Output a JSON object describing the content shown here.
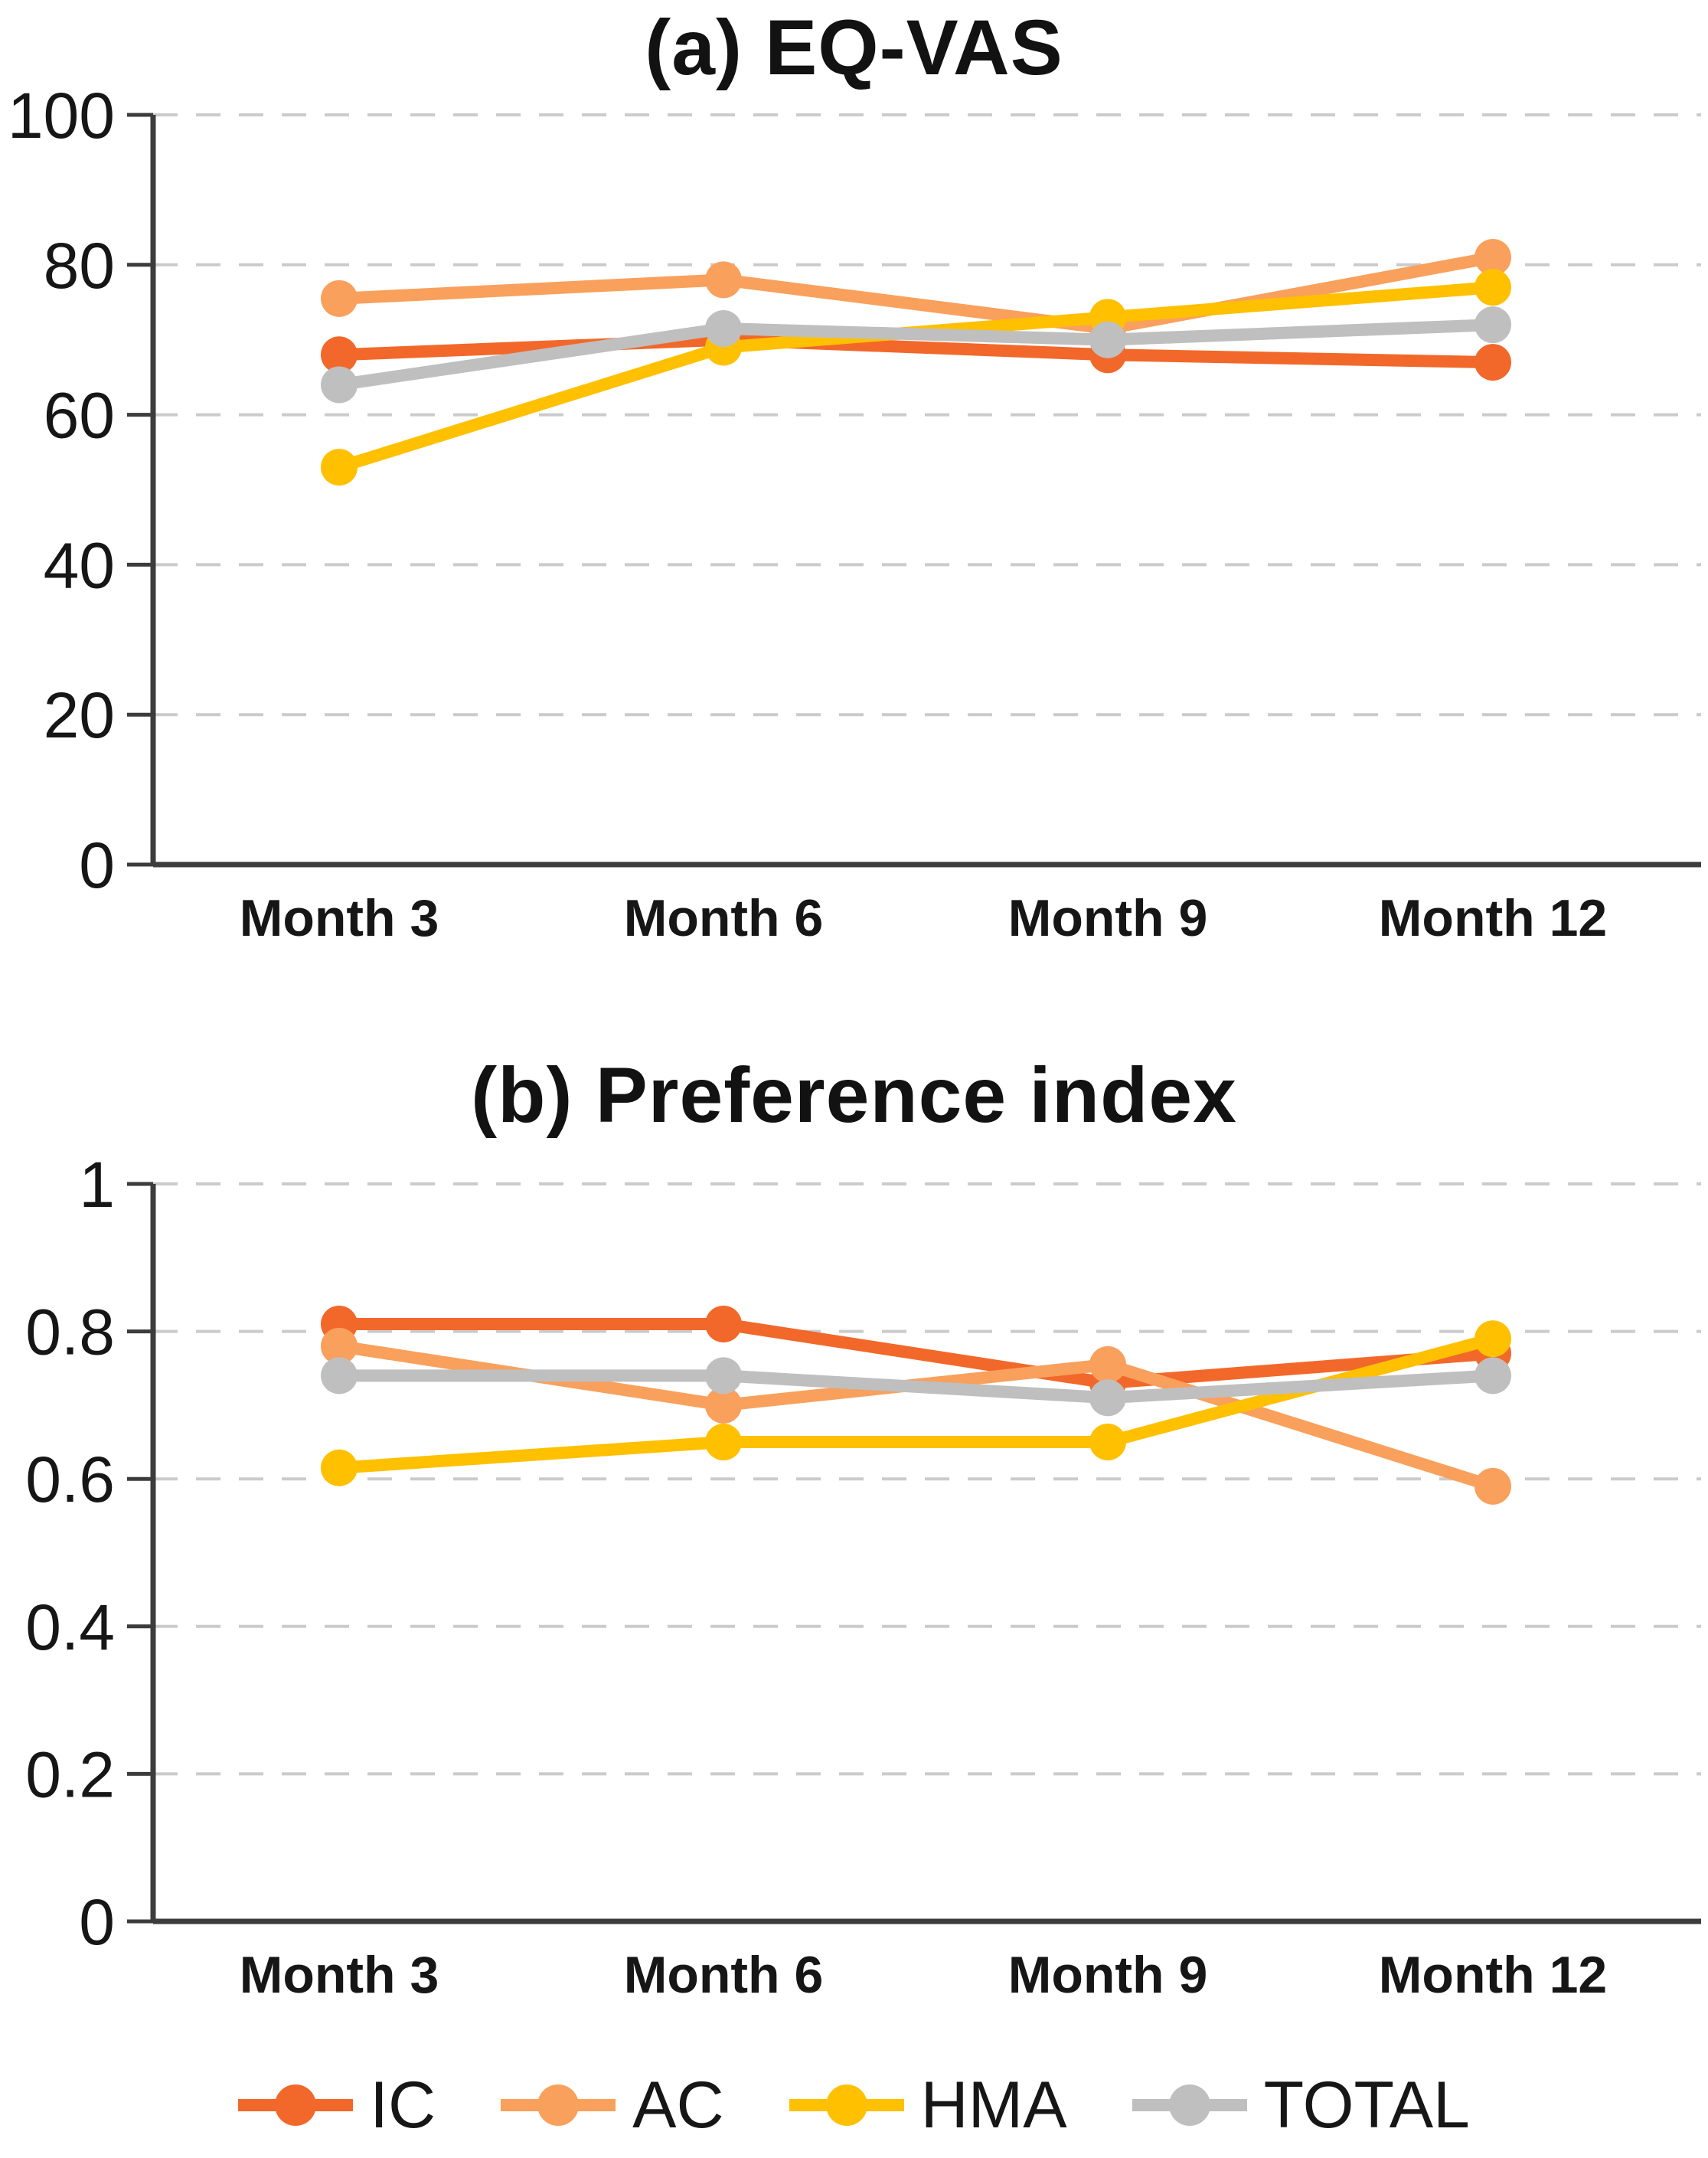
{
  "figure_name": "EQ-VAS and Preference index by group over follow-up months",
  "chart_data": [
    {
      "type": "line",
      "title": "(a) EQ-VAS",
      "categories": [
        "Month 3",
        "Month 6",
        "Month 9",
        "Month 12"
      ],
      "series": [
        {
          "name": "IC",
          "color": "#F2682A",
          "values": [
            68,
            70,
            68,
            67
          ]
        },
        {
          "name": "AC",
          "color": "#F9A05C",
          "values": [
            75.5,
            78,
            71.5,
            81
          ]
        },
        {
          "name": "HMA",
          "color": "#FFC000",
          "values": [
            53,
            69,
            73,
            77
          ]
        },
        {
          "name": "TOTAL",
          "color": "#BFBFBF",
          "values": [
            64,
            71.5,
            70,
            72
          ]
        }
      ],
      "ylim": [
        0,
        100
      ],
      "yticks": [
        0,
        20,
        40,
        60,
        80,
        100
      ],
      "ytick_labels": [
        "0",
        "20",
        "40",
        "60",
        "80",
        "100"
      ],
      "xlabel": "",
      "ylabel": "",
      "grid": "horizontal-dashed",
      "legend_position": "shared-bottom"
    },
    {
      "type": "line",
      "title": "(b) Preference index",
      "categories": [
        "Month 3",
        "Month 6",
        "Month 9",
        "Month 12"
      ],
      "series": [
        {
          "name": "IC",
          "color": "#F2682A",
          "values": [
            0.81,
            0.81,
            0.73,
            0.77
          ]
        },
        {
          "name": "AC",
          "color": "#F9A05C",
          "values": [
            0.78,
            0.7,
            0.755,
            0.59
          ]
        },
        {
          "name": "HMA",
          "color": "#FFC000",
          "values": [
            0.615,
            0.65,
            0.65,
            0.79
          ]
        },
        {
          "name": "TOTAL",
          "color": "#BFBFBF",
          "values": [
            0.74,
            0.74,
            0.71,
            0.74
          ]
        }
      ],
      "ylim": [
        0,
        1
      ],
      "yticks": [
        0,
        0.2,
        0.4,
        0.6,
        0.8,
        1
      ],
      "ytick_labels": [
        "0",
        "0.2",
        "0.4",
        "0.6",
        "0.8",
        "1"
      ],
      "xlabel": "",
      "ylabel": "",
      "grid": "horizontal-dashed",
      "legend_position": "shared-bottom"
    }
  ],
  "legend": {
    "items": [
      {
        "label": "IC",
        "color": "#F2682A"
      },
      {
        "label": "AC",
        "color": "#F9A05C"
      },
      {
        "label": "HMA",
        "color": "#FFC000"
      },
      {
        "label": "TOTAL",
        "color": "#BFBFBF"
      }
    ]
  }
}
